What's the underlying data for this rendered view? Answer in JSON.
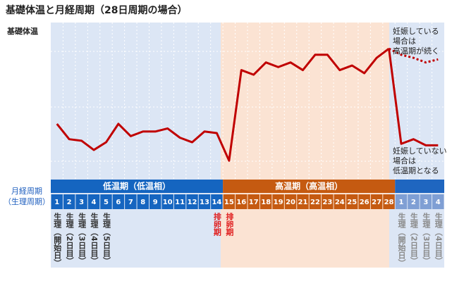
{
  "title": "基礎体温と月経周期（28日周期の場合）",
  "y_label": "基礎体温",
  "cycle_label": [
    "月経周期",
    "（生理周期）"
  ],
  "chart_data": {
    "type": "line",
    "categories": [
      "1",
      "2",
      "3",
      "4",
      "5",
      "6",
      "7",
      "8",
      "9",
      "10",
      "11",
      "12",
      "13",
      "14",
      "15",
      "16",
      "17",
      "18",
      "19",
      "20",
      "21",
      "22",
      "23",
      "24",
      "25",
      "26",
      "27",
      "28",
      "1",
      "2",
      "3",
      "4"
    ],
    "ylim": [
      0,
      100
    ],
    "series": [
      {
        "color": "#c00000",
        "style": "solid",
        "values": [
          34,
          24,
          23,
          17,
          22,
          34,
          26,
          29,
          29,
          31,
          25,
          22,
          29,
          28,
          10,
          69,
          66,
          74,
          71,
          74,
          69,
          79,
          79,
          69,
          72,
          67,
          77,
          83,
          null,
          null,
          null,
          null
        ]
      },
      {
        "color": "#c00000",
        "style": "solid",
        "values": [
          null,
          null,
          null,
          null,
          null,
          null,
          null,
          null,
          null,
          null,
          null,
          null,
          null,
          null,
          null,
          null,
          null,
          null,
          null,
          null,
          null,
          null,
          null,
          null,
          null,
          null,
          null,
          83,
          21,
          24,
          20,
          20
        ]
      },
      {
        "color": "#c00000",
        "style": "dotted",
        "values": [
          null,
          null,
          null,
          null,
          null,
          null,
          null,
          null,
          null,
          null,
          null,
          null,
          null,
          null,
          null,
          null,
          null,
          null,
          null,
          null,
          null,
          null,
          null,
          null,
          null,
          null,
          null,
          83,
          79,
          77,
          74,
          76
        ]
      }
    ],
    "phases": [
      "低温期（低温相）",
      "高温期（高温相）"
    ],
    "day_notes": [
      "生理（開始日）",
      "生理（2日目）",
      "生理（3日目）",
      "生理（4日目）",
      "生理（5日目）",
      null,
      null,
      null,
      null,
      null,
      null,
      null,
      null,
      "排卵期",
      "排卵期",
      null,
      null,
      null,
      null,
      null,
      null,
      null,
      null,
      null,
      null,
      null,
      null,
      null,
      "生理（開始日）",
      "生理（2日目）",
      "生理（3日目）",
      "生理（4日目）"
    ],
    "annotations": [
      [
        "妊娠している",
        "場合は",
        "高温期が続く"
      ],
      [
        "妊娠していない",
        "場合は",
        "低温期となる"
      ]
    ]
  }
}
